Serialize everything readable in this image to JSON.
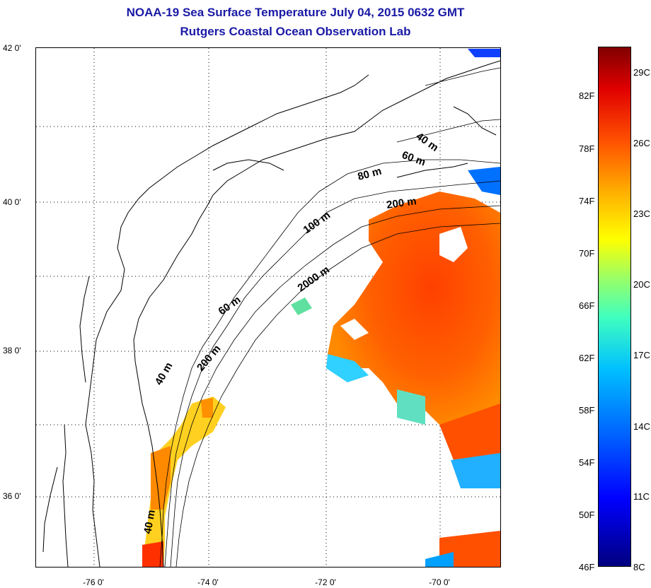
{
  "title_line1": "NOAA-19 Sea Surface Temperature July 04, 2015 0632 GMT",
  "title_line2": "Rutgers Coastal Ocean Observation Lab",
  "lat_labels": [
    "42 0'",
    "40 0'",
    "38 0'",
    "36 0'"
  ],
  "lon_labels": [
    "-76 0'",
    "-74 0'",
    "-72 0'",
    "-70 0'"
  ],
  "colorbar": {
    "fahrenheit": [
      "82F",
      "78F",
      "74F",
      "70F",
      "66F",
      "62F",
      "58F",
      "54F",
      "50F",
      "46F"
    ],
    "celsius": [
      "29C",
      "26C",
      "23C",
      "20C",
      "17C",
      "14C",
      "11C",
      "8C"
    ],
    "colors": [
      "#00007f",
      "#0000ff",
      "#00c0ff",
      "#40ffbf",
      "#ffff00",
      "#ffb000",
      "#ff5000",
      "#e00000",
      "#800000"
    ]
  },
  "contour_labels": [
    "40 m",
    "60 m",
    "80 m",
    "200 m",
    "100 m",
    "2000 m",
    "60 m",
    "200 m",
    "40 m",
    "40 m"
  ]
}
